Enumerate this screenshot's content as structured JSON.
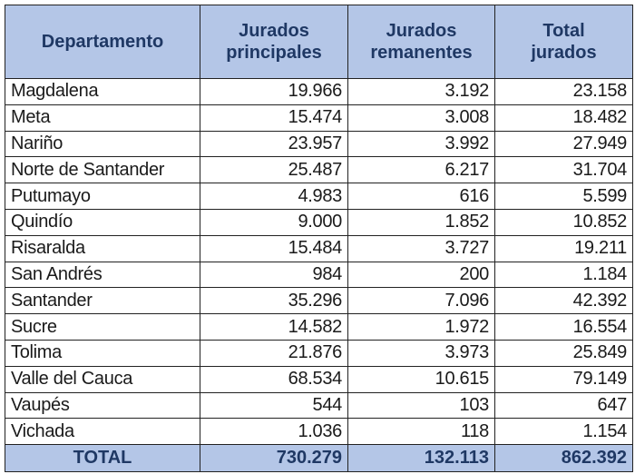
{
  "headers": [
    "Departamento",
    "Jurados principales",
    "Jurados remanentes",
    "Total jurados"
  ],
  "rows": [
    [
      "Magdalena",
      "19.966",
      "3.192",
      "23.158"
    ],
    [
      "Meta",
      "15.474",
      "3.008",
      "18.482"
    ],
    [
      "Nariño",
      "23.957",
      "3.992",
      "27.949"
    ],
    [
      "Norte de Santander",
      "25.487",
      "6.217",
      "31.704"
    ],
    [
      "Putumayo",
      "4.983",
      "616",
      "5.599"
    ],
    [
      "Quindío",
      "9.000",
      "1.852",
      "10.852"
    ],
    [
      "Risaralda",
      "15.484",
      "3.727",
      "19.211"
    ],
    [
      "San Andrés",
      "984",
      "200",
      "1.184"
    ],
    [
      "Santander",
      "35.296",
      "7.096",
      "42.392"
    ],
    [
      "Sucre",
      "14.582",
      "1.972",
      "16.554"
    ],
    [
      "Tolima",
      "21.876",
      "3.973",
      "25.849"
    ],
    [
      "Valle del Cauca",
      "68.534",
      "10.615",
      "79.149"
    ],
    [
      "Vaupés",
      "544",
      "103",
      "647"
    ],
    [
      "Vichada",
      "1.036",
      "118",
      "1.154"
    ]
  ],
  "total": [
    "TOTAL",
    "730.279",
    "132.113",
    "862.392"
  ],
  "colors": {
    "header_bg": "#b4c6e7",
    "header_text": "#1f3864"
  }
}
